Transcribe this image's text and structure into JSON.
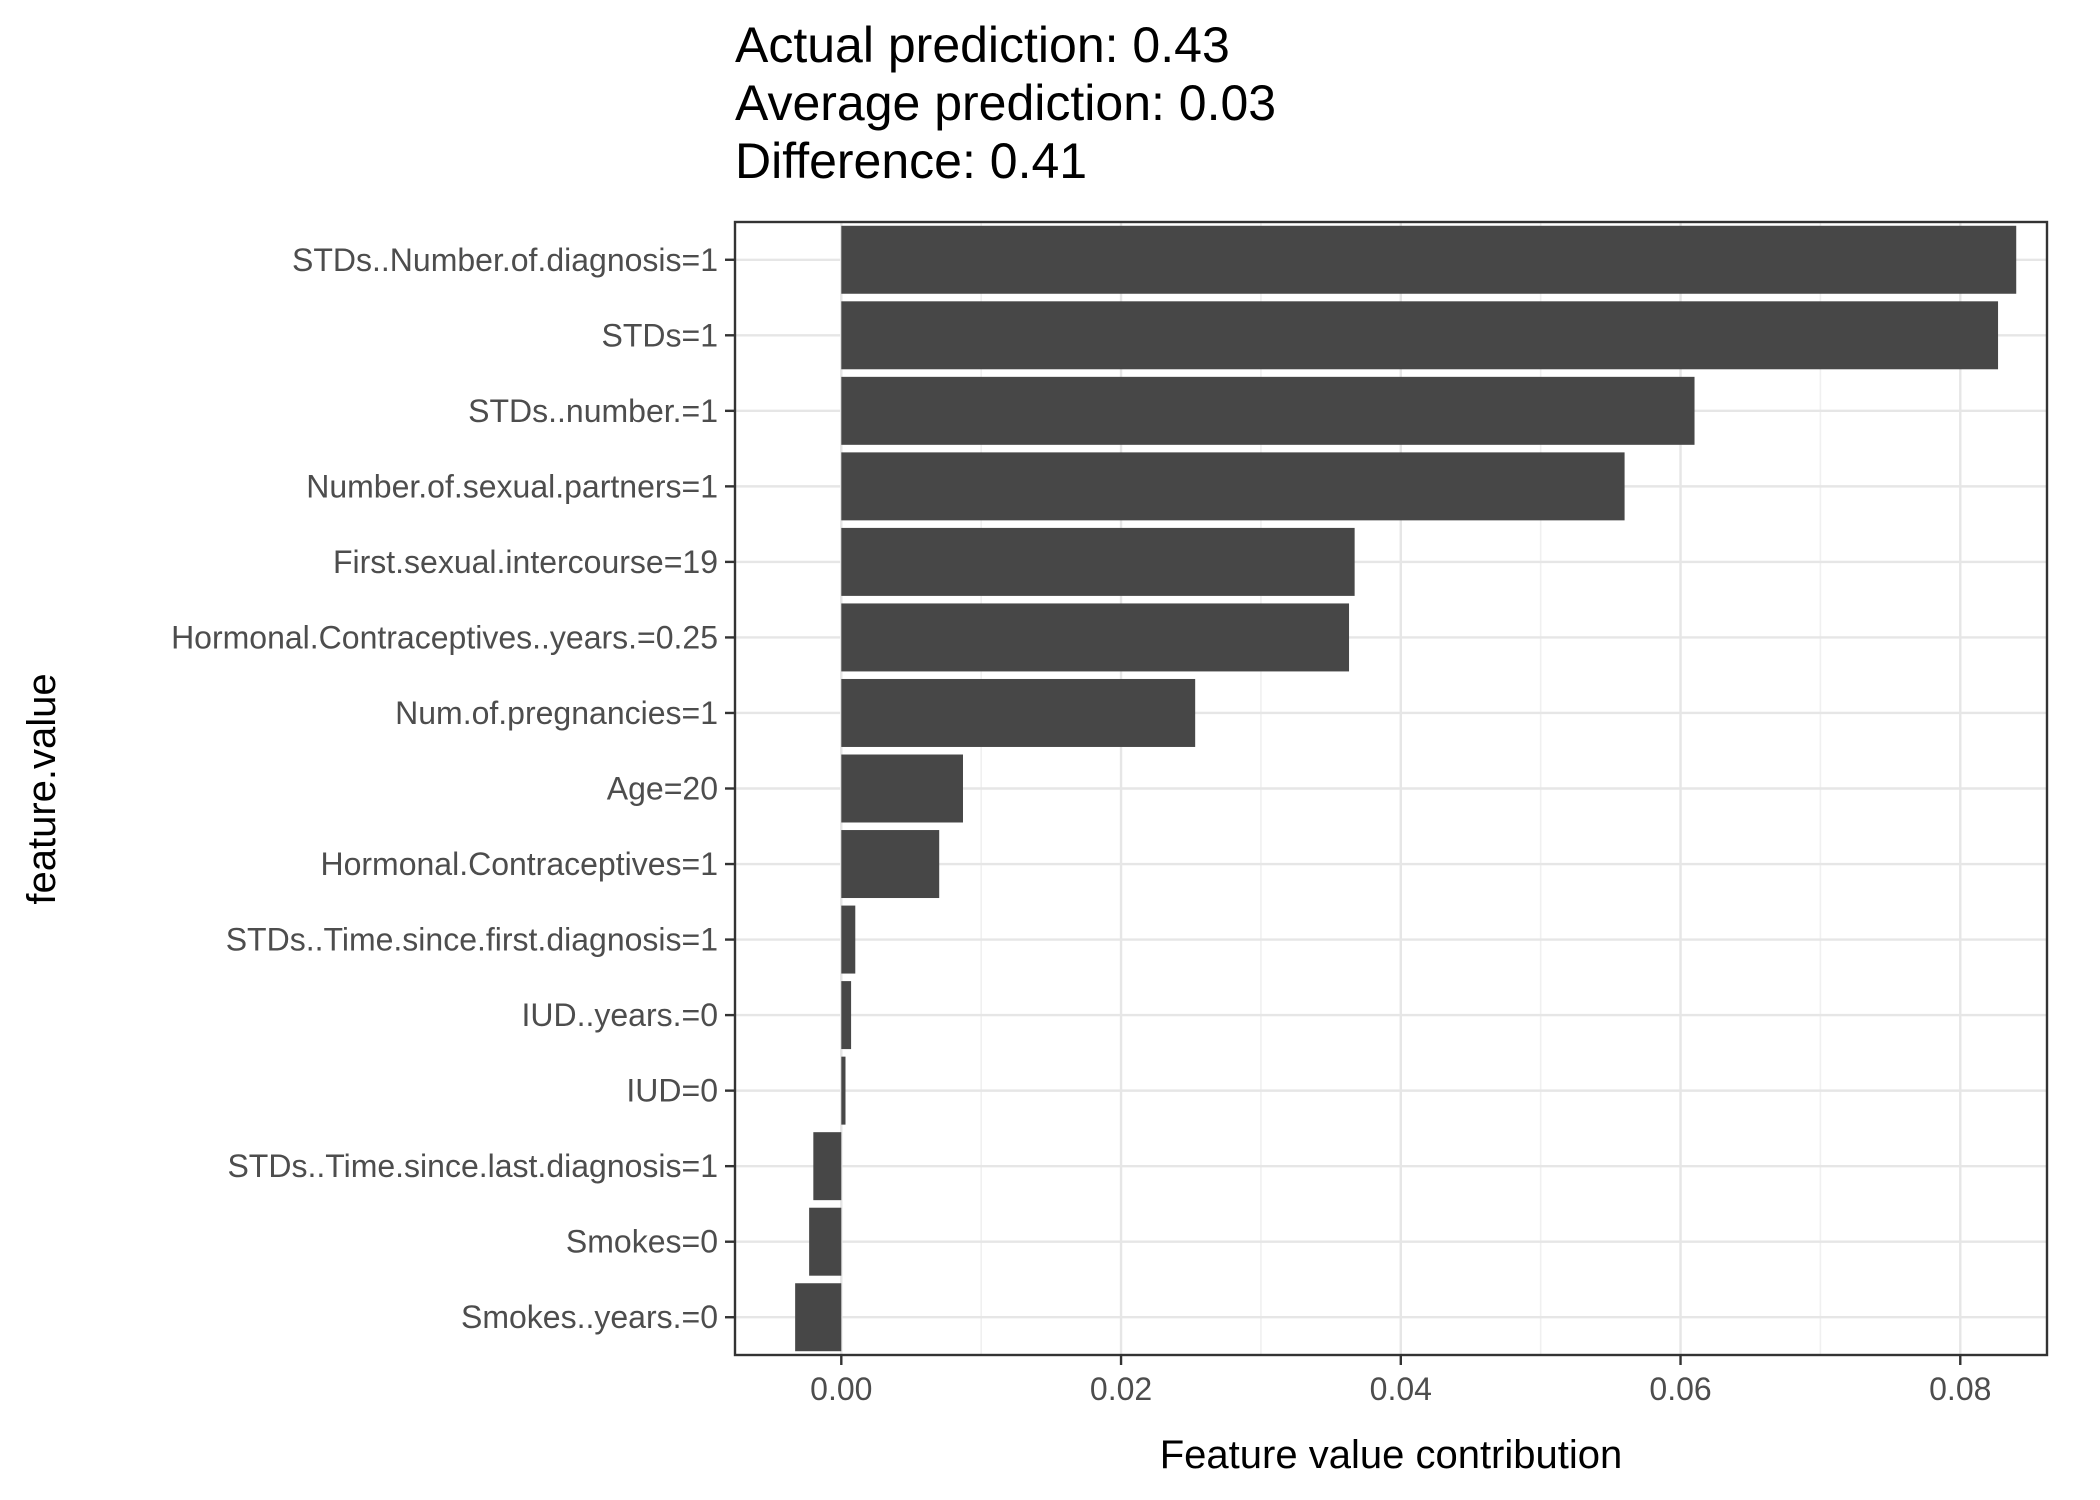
{
  "chart_data": {
    "type": "bar",
    "orientation": "horizontal",
    "title_lines": [
      "Actual prediction: 0.43",
      "Average prediction: 0.03",
      "Difference: 0.41"
    ],
    "xlabel": "Feature value contribution",
    "ylabel": "feature.value",
    "xlim": [
      -0.0076,
      0.0862
    ],
    "x_ticks": [
      0.0,
      0.02,
      0.04,
      0.06,
      0.08
    ],
    "x_tick_labels": [
      "0.00",
      "0.02",
      "0.04",
      "0.06",
      "0.08"
    ],
    "x_minor_ticks": [
      0.01,
      0.03,
      0.05,
      0.07
    ],
    "grid": true,
    "bar_color": "#474747",
    "categories": [
      "STDs..Number.of.diagnosis=1",
      "STDs=1",
      "STDs..number.=1",
      "Number.of.sexual.partners=1",
      "First.sexual.intercourse=19",
      "Hormonal.Contraceptives..years.=0.25",
      "Num.of.pregnancies=1",
      "Age=20",
      "Hormonal.Contraceptives=1",
      "STDs..Time.since.first.diagnosis=1",
      "IUD..years.=0",
      "IUD=0",
      "STDs..Time.since.last.diagnosis=1",
      "Smokes=0",
      "Smokes..years.=0"
    ],
    "values": [
      0.084,
      0.0827,
      0.061,
      0.056,
      0.0367,
      0.0363,
      0.0253,
      0.0087,
      0.007,
      0.001,
      0.0007,
      0.0003,
      -0.002,
      -0.0023,
      -0.0033
    ]
  }
}
